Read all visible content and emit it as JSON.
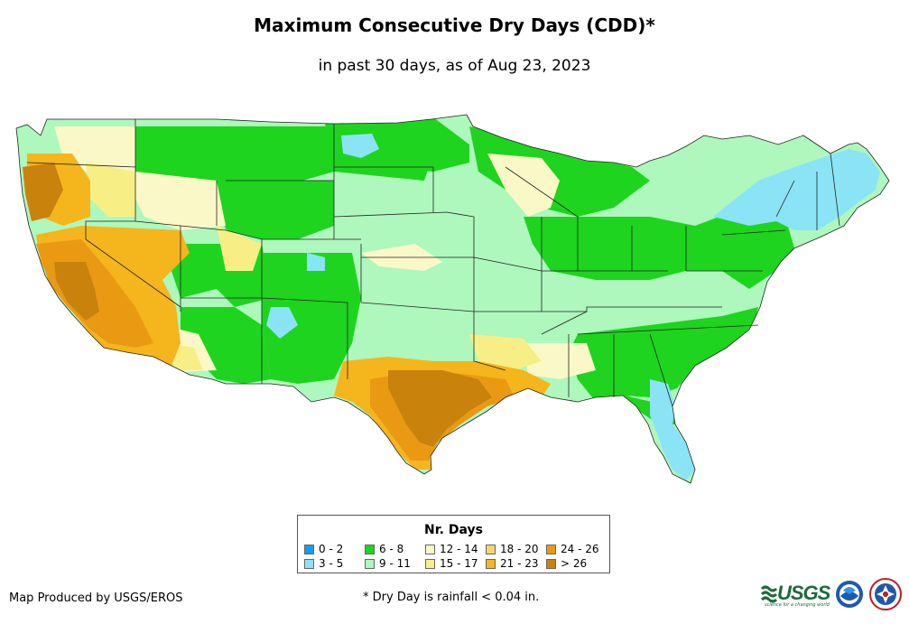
{
  "header": {
    "title": "Maximum Consecutive Dry Days (CDD)*",
    "subtitle": "in past 30 days, as of Aug 23, 2023"
  },
  "legend": {
    "title": "Nr. Days",
    "items": [
      {
        "label": "0 - 2",
        "color": "#1a9cf0"
      },
      {
        "label": "3 - 5",
        "color": "#8ae4f6"
      },
      {
        "label": "6 - 8",
        "color": "#1ed41e"
      },
      {
        "label": "9 - 11",
        "color": "#aef7bd"
      },
      {
        "label": "12 - 14",
        "color": "#fbf8c8"
      },
      {
        "label": "15 - 17",
        "color": "#f7ef86"
      },
      {
        "label": "18 - 20",
        "color": "#f6d56e"
      },
      {
        "label": "21 - 23",
        "color": "#f5b51c"
      },
      {
        "label": "24 - 26",
        "color": "#e99a12"
      },
      {
        "label": "> 26",
        "color": "#c9820c"
      }
    ]
  },
  "footer": {
    "credit": "Map Produced by USGS/EROS",
    "footnote": "* Dry Day is rainfall < 0.04 in.",
    "usgs_logo_text": "USGS",
    "usgs_tagline": "science for a changing world"
  }
}
